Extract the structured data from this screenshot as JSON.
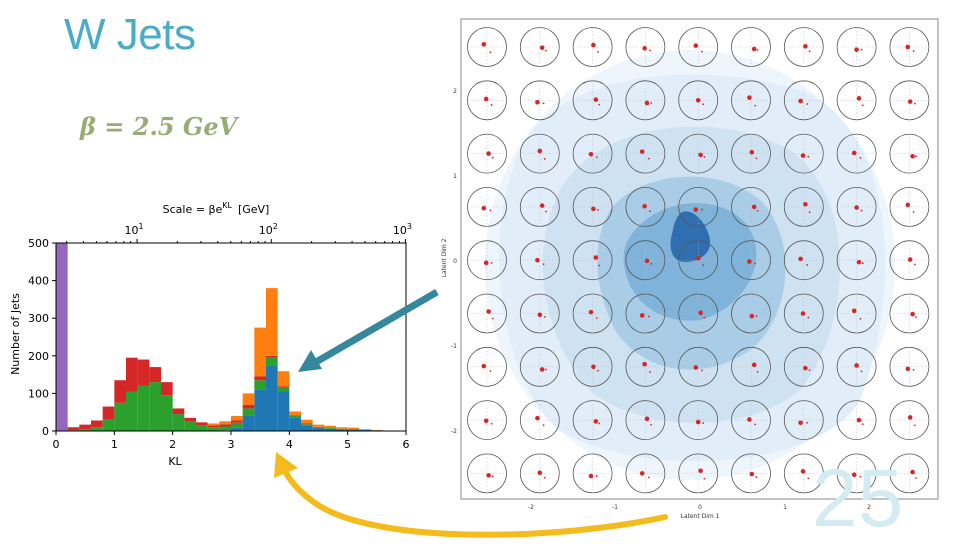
{
  "slide": {
    "title": "W Jets",
    "beta_label": "β = 2.5 GeV",
    "page_number": "25"
  },
  "chart_data": {
    "type": "bar",
    "subtype": "stacked-histogram",
    "top_axis_title": "Scale = βe",
    "top_axis_title_sup": "KL",
    "top_axis_unit": "[GeV]",
    "top_ticks": [
      {
        "base": "10",
        "exp": "1",
        "kl": 1.39
      },
      {
        "base": "10",
        "exp": "2",
        "kl": 3.69
      },
      {
        "base": "10",
        "exp": "3",
        "kl": 5.99
      }
    ],
    "xlabel": "KL",
    "ylabel": "Number of Jets",
    "xlim": [
      0,
      6
    ],
    "ylim": [
      0,
      500
    ],
    "xticks": [
      "0",
      "1",
      "2",
      "3",
      "4",
      "5",
      "6"
    ],
    "yticks": [
      "0",
      "100",
      "200",
      "300",
      "400",
      "500"
    ],
    "bin_width": 0.2,
    "bin_starts": [
      0.0,
      0.2,
      0.4,
      0.6,
      0.8,
      1.0,
      1.2,
      1.4,
      1.6,
      1.8,
      2.0,
      2.2,
      2.4,
      2.6,
      2.8,
      3.0,
      3.2,
      3.4,
      3.6,
      3.8,
      4.0,
      4.2,
      4.4,
      4.6,
      4.8,
      5.0,
      5.2,
      5.4,
      5.6,
      5.8
    ],
    "series": [
      {
        "name": "purple",
        "color": "#9467bd",
        "values": [
          500,
          0,
          0,
          0,
          0,
          0,
          0,
          0,
          0,
          0,
          0,
          0,
          0,
          0,
          0,
          0,
          0,
          0,
          0,
          0,
          0,
          0,
          0,
          0,
          0,
          0,
          0,
          0,
          0,
          0
        ]
      },
      {
        "name": "blue",
        "color": "#1f77b4",
        "values": [
          0,
          0,
          0,
          0,
          0,
          0,
          0,
          0,
          0,
          0,
          0,
          0,
          0,
          0,
          2,
          10,
          40,
          110,
          175,
          105,
          35,
          15,
          8,
          6,
          5,
          4,
          3,
          2,
          0,
          0
        ]
      },
      {
        "name": "green",
        "color": "#2ca02c",
        "values": [
          0,
          2,
          5,
          10,
          30,
          75,
          105,
          120,
          130,
          95,
          45,
          25,
          15,
          10,
          10,
          12,
          20,
          25,
          20,
          10,
          5,
          3,
          2,
          2,
          1,
          1,
          0,
          0,
          0,
          0
        ]
      },
      {
        "name": "red",
        "color": "#d62728",
        "values": [
          0,
          8,
          12,
          18,
          35,
          60,
          90,
          70,
          40,
          35,
          15,
          10,
          8,
          5,
          6,
          6,
          10,
          10,
          5,
          4,
          2,
          2,
          1,
          1,
          0,
          0,
          0,
          0,
          0,
          0
        ]
      },
      {
        "name": "orange",
        "color": "#ff7f0e",
        "values": [
          0,
          0,
          0,
          0,
          0,
          0,
          0,
          0,
          0,
          0,
          0,
          0,
          0,
          5,
          8,
          12,
          30,
          130,
          180,
          40,
          10,
          10,
          6,
          5,
          4,
          4,
          2,
          1,
          1,
          0
        ]
      }
    ]
  },
  "latent_figure": {
    "xlabel": "Latent Dim 1",
    "ylabel": "Latent Dim 2",
    "xticks": [
      "-2",
      "-1",
      "0",
      "1",
      "2"
    ],
    "yticks": [
      "2",
      "1",
      "0",
      "-1",
      "-2"
    ]
  },
  "arrow_colors": {
    "teal": "#34879c",
    "yellow": "#f4bb1c"
  }
}
